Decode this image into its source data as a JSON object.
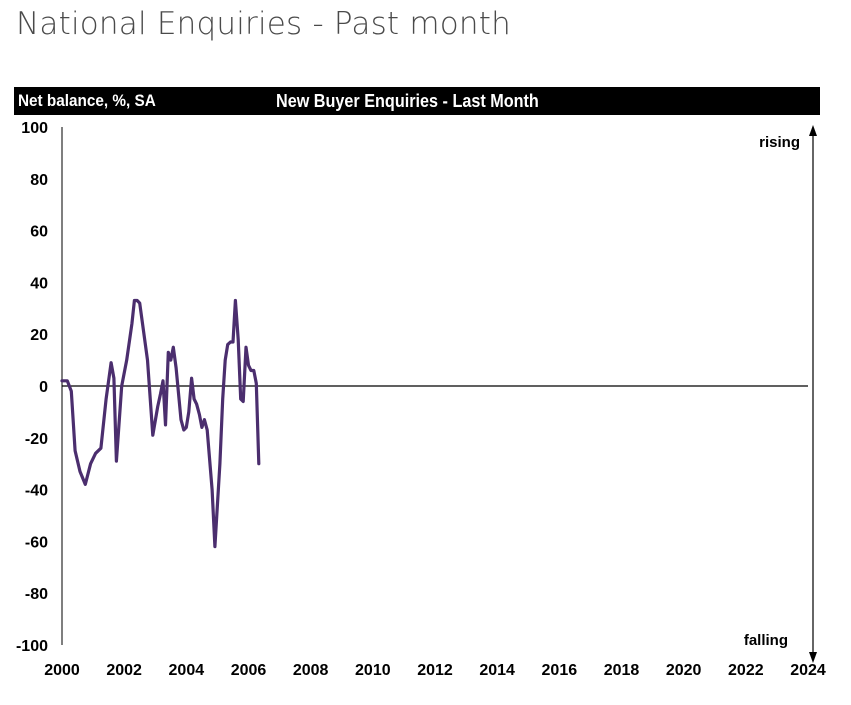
{
  "page": {
    "title": "National Enquiries - Past month"
  },
  "chart_data": {
    "type": "line",
    "title": "New Buyer Enquiries - Last Month",
    "ylabel": "Net balance, %, SA",
    "xlabel": "",
    "xlim": [
      2000,
      2024
    ],
    "ylim": [
      -100,
      100
    ],
    "x_ticks": [
      "2000",
      "2002",
      "2004",
      "2006",
      "2008",
      "2010",
      "2012",
      "2014",
      "2016",
      "2018",
      "2020",
      "2022",
      "2024"
    ],
    "y_ticks": [
      "100",
      "80",
      "60",
      "40",
      "20",
      "0",
      "-20",
      "-40",
      "-60",
      "-80",
      "-100"
    ],
    "annotations": {
      "top": "rising",
      "bottom": "falling"
    },
    "zero_line": true,
    "grid": false,
    "colors": {
      "line": "#4b2e6e",
      "axis": "#555555",
      "zero": "#000000"
    },
    "series": [
      {
        "name": "New Buyer Enquiries",
        "points": [
          [
            2000.0,
            2
          ],
          [
            2000.17,
            2
          ],
          [
            2000.3,
            -2
          ],
          [
            2000.42,
            -25
          ],
          [
            2000.58,
            -33
          ],
          [
            2000.75,
            -38
          ],
          [
            2000.92,
            -30
          ],
          [
            2001.08,
            -26
          ],
          [
            2001.25,
            -24
          ],
          [
            2001.42,
            -5
          ],
          [
            2001.58,
            9
          ],
          [
            2001.67,
            3
          ],
          [
            2001.75,
            -29
          ],
          [
            2001.92,
            0
          ],
          [
            2002.08,
            10
          ],
          [
            2002.25,
            24
          ],
          [
            2002.33,
            33
          ],
          [
            2002.42,
            33
          ],
          [
            2002.5,
            32
          ],
          [
            2002.58,
            25
          ],
          [
            2002.75,
            10
          ],
          [
            2002.92,
            -19
          ],
          [
            2003.08,
            -8
          ],
          [
            2003.17,
            -3
          ],
          [
            2003.25,
            2
          ],
          [
            2003.33,
            -15
          ],
          [
            2003.42,
            13
          ],
          [
            2003.5,
            10
          ],
          [
            2003.58,
            15
          ],
          [
            2003.67,
            7
          ],
          [
            2003.83,
            -13
          ],
          [
            2003.92,
            -17
          ],
          [
            2004.0,
            -16
          ],
          [
            2004.08,
            -10
          ],
          [
            2004.17,
            3
          ],
          [
            2004.25,
            -5
          ],
          [
            2004.33,
            -7
          ],
          [
            2004.42,
            -11
          ],
          [
            2004.5,
            -16
          ],
          [
            2004.58,
            -13
          ],
          [
            2004.67,
            -17
          ],
          [
            2004.83,
            -40
          ],
          [
            2004.92,
            -62
          ],
          [
            2005.08,
            -30
          ],
          [
            2005.17,
            -5
          ],
          [
            2005.25,
            10
          ],
          [
            2005.33,
            16
          ],
          [
            2005.42,
            17
          ],
          [
            2005.5,
            17
          ],
          [
            2005.58,
            33
          ],
          [
            2005.67,
            18
          ],
          [
            2005.75,
            -5
          ],
          [
            2005.83,
            -6
          ],
          [
            2005.92,
            15
          ],
          [
            2006.0,
            8
          ],
          [
            2006.08,
            6
          ],
          [
            2006.17,
            6
          ],
          [
            2006.25,
            1
          ],
          [
            2006.33,
            -30
          ]
        ]
      }
    ]
  }
}
